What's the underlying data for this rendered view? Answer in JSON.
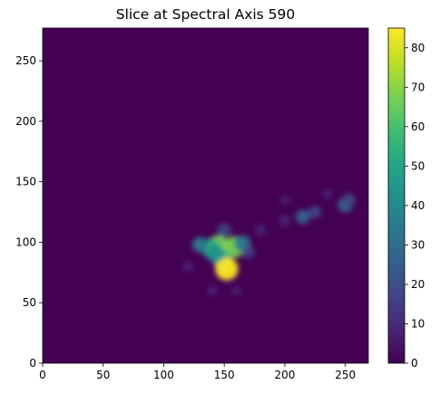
{
  "chart_data": {
    "type": "heatmap",
    "title": "Slice at Spectral Axis 590",
    "xlabel": "",
    "ylabel": "",
    "xlim": [
      0,
      269
    ],
    "ylim": [
      0,
      277
    ],
    "x_ticks": [
      0,
      50,
      100,
      150,
      200,
      250
    ],
    "x_tick_labels": [
      "0",
      "50",
      "100",
      "150",
      "200",
      "250"
    ],
    "y_ticks": [
      0,
      50,
      100,
      150,
      200,
      250
    ],
    "y_tick_labels": [
      "0",
      "50",
      "100",
      "150",
      "200",
      "250"
    ],
    "colormap": "viridis",
    "color_range": [
      0,
      85
    ],
    "colorbar_ticks": [
      0,
      10,
      20,
      30,
      40,
      50,
      60,
      70,
      80
    ],
    "colorbar_tick_labels": [
      "0",
      "10",
      "20",
      "30",
      "40",
      "50",
      "60",
      "70",
      "80"
    ],
    "grid": false,
    "features": [
      {
        "x": 145,
        "y": 97,
        "value": 70
      },
      {
        "x": 158,
        "y": 96,
        "value": 70
      },
      {
        "x": 139,
        "y": 95,
        "value": 55
      },
      {
        "x": 149,
        "y": 85,
        "value": 55
      },
      {
        "x": 152,
        "y": 78,
        "value": 85
      },
      {
        "x": 143,
        "y": 90,
        "value": 40
      },
      {
        "x": 165,
        "y": 99,
        "value": 35
      },
      {
        "x": 130,
        "y": 98,
        "value": 30
      },
      {
        "x": 150,
        "y": 110,
        "value": 20
      },
      {
        "x": 170,
        "y": 92,
        "value": 15
      },
      {
        "x": 180,
        "y": 110,
        "value": 10
      },
      {
        "x": 200,
        "y": 118,
        "value": 12
      },
      {
        "x": 215,
        "y": 121,
        "value": 25
      },
      {
        "x": 225,
        "y": 125,
        "value": 15
      },
      {
        "x": 250,
        "y": 131,
        "value": 28
      },
      {
        "x": 253,
        "y": 135,
        "value": 18
      },
      {
        "x": 235,
        "y": 140,
        "value": 6
      },
      {
        "x": 200,
        "y": 135,
        "value": 5
      },
      {
        "x": 120,
        "y": 80,
        "value": 8
      },
      {
        "x": 140,
        "y": 60,
        "value": 6
      },
      {
        "x": 160,
        "y": 60,
        "value": 5
      },
      {
        "x": 110,
        "y": 50,
        "value": 4
      },
      {
        "x": 150,
        "y": 40,
        "value": 3
      },
      {
        "x": 260,
        "y": 50,
        "value": 3
      }
    ]
  }
}
